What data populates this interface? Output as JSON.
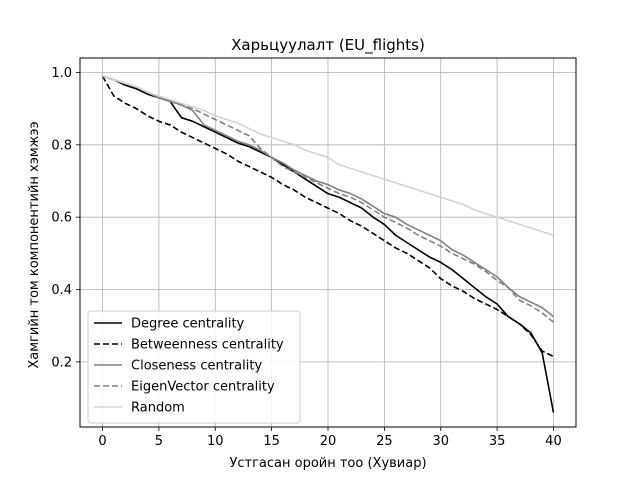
{
  "chart_data": {
    "type": "line",
    "title": "Харьцуулалт (EU_flights)",
    "xlabel": "Устгасан оройн тоо (Хувиар)",
    "ylabel": "Хамгийн том компонентийн хэмжээ",
    "xlim": [
      -2,
      42
    ],
    "ylim": [
      0.02,
      1.04
    ],
    "xticks": [
      0,
      5,
      10,
      15,
      20,
      25,
      30,
      35,
      40
    ],
    "yticks": [
      0.2,
      0.4,
      0.6,
      0.8,
      1.0
    ],
    "ytick_labels": [
      "0.2",
      "0.4",
      "0.6",
      "0.8",
      "1.0"
    ],
    "grid": true,
    "legend_position": "lower-left",
    "series": [
      {
        "name": "Degree centrality",
        "color": "#000000",
        "dash": "solid",
        "x": [
          0,
          1,
          2,
          3,
          4,
          5,
          6,
          7,
          8,
          9,
          10,
          11,
          12,
          13,
          14,
          15,
          16,
          17,
          18,
          19,
          20,
          21,
          22,
          23,
          24,
          25,
          26,
          27,
          28,
          29,
          30,
          31,
          32,
          33,
          34,
          35,
          36,
          37,
          38,
          39,
          40
        ],
        "y": [
          0.99,
          0.98,
          0.965,
          0.955,
          0.94,
          0.93,
          0.92,
          0.875,
          0.865,
          0.85,
          0.835,
          0.82,
          0.805,
          0.795,
          0.78,
          0.765,
          0.745,
          0.725,
          0.705,
          0.685,
          0.665,
          0.655,
          0.64,
          0.625,
          0.6,
          0.58,
          0.55,
          0.53,
          0.51,
          0.49,
          0.475,
          0.455,
          0.43,
          0.405,
          0.38,
          0.36,
          0.325,
          0.305,
          0.28,
          0.225,
          0.06
        ]
      },
      {
        "name": "Betweenness centrality",
        "color": "#000000",
        "dash": "dashed",
        "x": [
          0,
          1,
          2,
          3,
          4,
          5,
          6,
          7,
          8,
          9,
          10,
          11,
          12,
          13,
          14,
          15,
          16,
          17,
          18,
          19,
          20,
          21,
          22,
          23,
          24,
          25,
          26,
          27,
          28,
          29,
          30,
          31,
          32,
          33,
          34,
          35,
          36,
          37,
          38,
          39,
          40
        ],
        "y": [
          0.99,
          0.935,
          0.915,
          0.9,
          0.88,
          0.865,
          0.855,
          0.835,
          0.82,
          0.805,
          0.79,
          0.775,
          0.755,
          0.74,
          0.725,
          0.71,
          0.69,
          0.675,
          0.655,
          0.64,
          0.625,
          0.61,
          0.59,
          0.575,
          0.555,
          0.535,
          0.515,
          0.5,
          0.48,
          0.46,
          0.43,
          0.41,
          0.395,
          0.375,
          0.36,
          0.345,
          0.325,
          0.305,
          0.275,
          0.23,
          0.215
        ]
      },
      {
        "name": "Closeness centrality",
        "color": "#808080",
        "dash": "solid",
        "x": [
          0,
          1,
          2,
          3,
          4,
          5,
          6,
          7,
          8,
          9,
          10,
          11,
          12,
          13,
          14,
          15,
          16,
          17,
          18,
          19,
          20,
          21,
          22,
          23,
          24,
          25,
          26,
          27,
          28,
          29,
          30,
          31,
          32,
          33,
          34,
          35,
          36,
          37,
          38,
          39,
          40
        ],
        "y": [
          0.99,
          0.98,
          0.97,
          0.96,
          0.945,
          0.93,
          0.92,
          0.91,
          0.895,
          0.855,
          0.84,
          0.825,
          0.81,
          0.8,
          0.785,
          0.765,
          0.75,
          0.73,
          0.715,
          0.7,
          0.69,
          0.675,
          0.665,
          0.65,
          0.63,
          0.61,
          0.6,
          0.58,
          0.565,
          0.55,
          0.535,
          0.51,
          0.495,
          0.475,
          0.455,
          0.435,
          0.405,
          0.38,
          0.365,
          0.35,
          0.325
        ]
      },
      {
        "name": "EigenVector centrality",
        "color": "#808080",
        "dash": "dashed",
        "x": [
          0,
          1,
          2,
          3,
          4,
          5,
          6,
          7,
          8,
          9,
          10,
          11,
          12,
          13,
          14,
          15,
          16,
          17,
          18,
          19,
          20,
          21,
          22,
          23,
          24,
          25,
          26,
          27,
          28,
          29,
          30,
          31,
          32,
          33,
          34,
          35,
          36,
          37,
          38,
          39,
          40
        ],
        "y": [
          0.99,
          0.98,
          0.97,
          0.96,
          0.945,
          0.93,
          0.92,
          0.91,
          0.9,
          0.885,
          0.87,
          0.855,
          0.84,
          0.825,
          0.79,
          0.765,
          0.74,
          0.725,
          0.71,
          0.695,
          0.68,
          0.665,
          0.655,
          0.64,
          0.62,
          0.6,
          0.585,
          0.57,
          0.55,
          0.535,
          0.52,
          0.5,
          0.485,
          0.47,
          0.45,
          0.425,
          0.405,
          0.37,
          0.355,
          0.335,
          0.31
        ]
      },
      {
        "name": "Random",
        "color": "#d3d3d3",
        "dash": "solid",
        "x": [
          0,
          1,
          2,
          3,
          4,
          5,
          6,
          7,
          8,
          9,
          10,
          11,
          12,
          13,
          14,
          15,
          16,
          17,
          18,
          19,
          20,
          21,
          22,
          23,
          24,
          25,
          26,
          27,
          28,
          29,
          30,
          31,
          32,
          33,
          34,
          35,
          36,
          37,
          38,
          39,
          40
        ],
        "y": [
          0.99,
          0.98,
          0.97,
          0.96,
          0.945,
          0.935,
          0.925,
          0.915,
          0.905,
          0.895,
          0.88,
          0.87,
          0.86,
          0.845,
          0.83,
          0.82,
          0.81,
          0.8,
          0.785,
          0.775,
          0.765,
          0.745,
          0.735,
          0.725,
          0.715,
          0.705,
          0.695,
          0.685,
          0.675,
          0.665,
          0.655,
          0.645,
          0.635,
          0.62,
          0.61,
          0.6,
          0.59,
          0.58,
          0.57,
          0.56,
          0.55
        ]
      }
    ]
  }
}
